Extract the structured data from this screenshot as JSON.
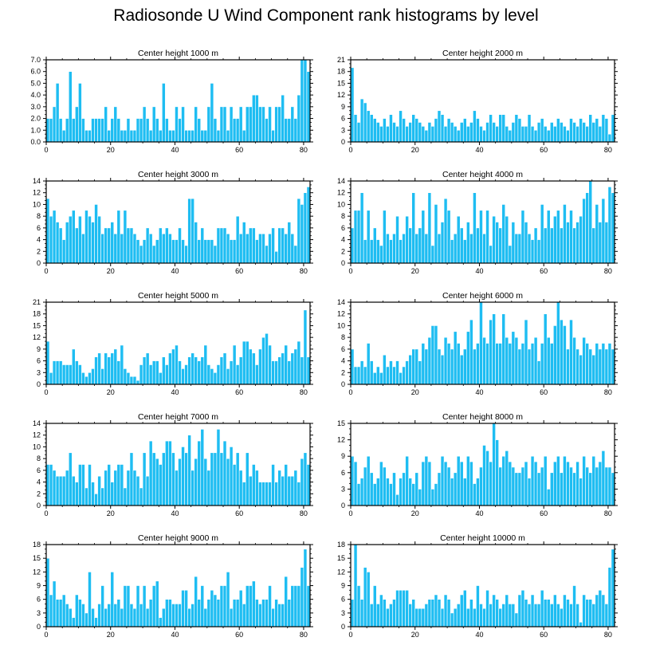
{
  "title": "Radiosonde U Wind Component rank histograms by level",
  "colors": {
    "bar": "#1ebdf2",
    "bar_edge": "#ffffff",
    "axis": "#000000"
  },
  "chart_data": [
    {
      "type": "bar",
      "title": "Center height 1000 m",
      "xlim": [
        0,
        82
      ],
      "ylim": [
        0,
        7
      ],
      "x_ticks": [
        0,
        20,
        40,
        60,
        80
      ],
      "y_ticks": [
        "0.0",
        "1.0",
        "2.0",
        "3.0",
        "4.0",
        "5.0",
        "6.0",
        "7.0"
      ],
      "values": [
        2,
        2,
        3,
        5,
        2,
        1,
        2,
        6,
        2,
        3,
        5,
        2,
        1,
        1,
        2,
        2,
        2,
        2,
        3,
        1,
        2,
        3,
        2,
        1,
        1,
        2,
        1,
        1,
        2,
        2,
        3,
        2,
        1,
        3,
        2,
        1,
        5,
        2,
        1,
        1,
        3,
        2,
        3,
        1,
        1,
        1,
        3,
        2,
        1,
        1,
        3,
        5,
        2,
        1,
        3,
        3,
        1,
        3,
        2,
        2,
        3,
        1,
        3,
        3,
        4,
        4,
        3,
        3,
        2,
        3,
        1,
        3,
        3,
        4,
        2,
        2,
        3,
        2,
        4,
        7,
        7,
        6
      ]
    },
    {
      "type": "bar",
      "title": "Center height 2000 m",
      "xlim": [
        0,
        82
      ],
      "ylim": [
        0,
        21
      ],
      "x_ticks": [
        0,
        20,
        40,
        60,
        80
      ],
      "y_ticks": [
        "0",
        "3",
        "6",
        "9",
        "12",
        "15",
        "18",
        "21"
      ],
      "values": [
        19,
        7,
        5,
        11,
        10,
        8,
        7,
        6,
        5,
        4,
        6,
        4,
        7,
        5,
        4,
        8,
        6,
        4,
        5,
        7,
        6,
        5,
        4,
        3,
        5,
        4,
        6,
        8,
        7,
        4,
        6,
        5,
        4,
        3,
        5,
        6,
        4,
        5,
        8,
        6,
        4,
        3,
        5,
        7,
        5,
        4,
        7,
        7,
        4,
        3,
        5,
        7,
        6,
        4,
        4,
        7,
        4,
        3,
        5,
        6,
        4,
        3,
        5,
        4,
        6,
        5,
        4,
        3,
        6,
        5,
        4,
        6,
        5,
        4,
        7,
        5,
        6,
        4,
        7,
        6,
        2,
        7
      ]
    },
    {
      "type": "bar",
      "title": "Center height 3000 m",
      "xlim": [
        0,
        82
      ],
      "ylim": [
        0,
        14
      ],
      "x_ticks": [
        0,
        20,
        40,
        60,
        80
      ],
      "y_ticks": [
        "0",
        "2",
        "4",
        "6",
        "8",
        "10",
        "12",
        "14"
      ],
      "values": [
        11,
        8,
        9,
        7,
        6,
        4,
        7,
        8,
        9,
        6,
        8,
        5,
        9,
        8,
        7,
        10,
        8,
        5,
        6,
        6,
        7,
        5,
        9,
        5,
        9,
        6,
        6,
        5,
        4,
        3,
        4,
        6,
        5,
        3,
        4,
        6,
        5,
        6,
        5,
        4,
        4,
        6,
        4,
        3,
        11,
        11,
        7,
        4,
        6,
        4,
        4,
        4,
        3,
        6,
        6,
        6,
        5,
        4,
        4,
        8,
        5,
        7,
        5,
        6,
        6,
        4,
        5,
        5,
        3,
        5,
        6,
        2,
        6,
        6,
        5,
        7,
        5,
        3,
        11,
        10,
        12,
        13
      ]
    },
    {
      "type": "bar",
      "title": "Center height 4000 m",
      "xlim": [
        0,
        82
      ],
      "ylim": [
        0,
        14
      ],
      "x_ticks": [
        0,
        20,
        40,
        60,
        80
      ],
      "y_ticks": [
        "0",
        "2",
        "4",
        "6",
        "8",
        "10",
        "12",
        "14"
      ],
      "values": [
        6,
        9,
        9,
        12,
        4,
        9,
        4,
        6,
        4,
        3,
        9,
        5,
        4,
        5,
        8,
        4,
        5,
        8,
        6,
        12,
        5,
        6,
        9,
        5,
        12,
        3,
        10,
        5,
        7,
        11,
        9,
        4,
        5,
        8,
        6,
        4,
        7,
        5,
        12,
        6,
        9,
        5,
        9,
        3,
        8,
        7,
        6,
        10,
        8,
        3,
        7,
        5,
        5,
        9,
        7,
        5,
        4,
        6,
        4,
        10,
        6,
        9,
        6,
        8,
        9,
        6,
        10,
        7,
        9,
        6,
        7,
        8,
        11,
        12,
        14,
        6,
        10,
        7,
        11,
        7,
        13,
        12
      ]
    },
    {
      "type": "bar",
      "title": "Center height 5000 m",
      "xlim": [
        0,
        82
      ],
      "ylim": [
        0,
        21
      ],
      "x_ticks": [
        0,
        20,
        40,
        60,
        80
      ],
      "y_ticks": [
        "0",
        "3",
        "6",
        "9",
        "12",
        "15",
        "18",
        "21"
      ],
      "values": [
        11,
        3,
        6,
        6,
        6,
        5,
        5,
        5,
        9,
        6,
        5,
        3,
        2,
        3,
        4,
        7,
        8,
        4,
        8,
        7,
        8,
        9,
        6,
        10,
        4,
        3,
        2,
        2,
        1,
        5,
        7,
        8,
        5,
        6,
        6,
        3,
        7,
        5,
        8,
        9,
        10,
        6,
        4,
        5,
        7,
        8,
        7,
        6,
        7,
        10,
        5,
        4,
        3,
        5,
        7,
        8,
        4,
        6,
        10,
        5,
        7,
        11,
        11,
        9,
        8,
        5,
        9,
        12,
        13,
        10,
        6,
        6,
        7,
        8,
        10,
        6,
        8,
        9,
        11,
        7,
        19,
        7
      ]
    },
    {
      "type": "bar",
      "title": "Center height 6000 m",
      "xlim": [
        0,
        82
      ],
      "ylim": [
        0,
        14
      ],
      "x_ticks": [
        0,
        20,
        40,
        60,
        80
      ],
      "y_ticks": [
        "0",
        "2",
        "4",
        "6",
        "8",
        "10",
        "12",
        "14"
      ],
      "values": [
        6,
        3,
        3,
        4,
        3,
        7,
        4,
        2,
        3,
        2,
        5,
        3,
        4,
        3,
        4,
        2,
        3,
        4,
        5,
        6,
        6,
        4,
        7,
        6,
        8,
        10,
        10,
        6,
        5,
        8,
        7,
        6,
        9,
        7,
        5,
        6,
        9,
        11,
        6,
        7,
        14,
        8,
        7,
        11,
        12,
        7,
        7,
        12,
        8,
        7,
        9,
        8,
        6,
        7,
        11,
        6,
        7,
        8,
        4,
        7,
        12,
        8,
        7,
        10,
        14,
        11,
        10,
        6,
        11,
        8,
        6,
        5,
        8,
        7,
        6,
        5,
        7,
        6,
        7,
        6,
        7,
        6
      ]
    },
    {
      "type": "bar",
      "title": "Center height 7000 m",
      "xlim": [
        0,
        82
      ],
      "ylim": [
        0,
        14
      ],
      "x_ticks": [
        0,
        20,
        40,
        60,
        80
      ],
      "y_ticks": [
        "0",
        "2",
        "4",
        "6",
        "8",
        "10",
        "12",
        "14"
      ],
      "values": [
        7,
        7,
        6,
        5,
        5,
        5,
        6,
        9,
        5,
        4,
        7,
        7,
        3,
        7,
        4,
        2,
        5,
        3,
        6,
        7,
        4,
        6,
        7,
        7,
        3,
        6,
        9,
        6,
        5,
        3,
        9,
        5,
        11,
        9,
        8,
        7,
        9,
        11,
        11,
        9,
        6,
        8,
        10,
        9,
        12,
        6,
        8,
        11,
        13,
        8,
        6,
        9,
        9,
        13,
        9,
        11,
        8,
        10,
        7,
        9,
        6,
        4,
        9,
        5,
        7,
        6,
        4,
        4,
        4,
        4,
        7,
        4,
        6,
        5,
        7,
        5,
        5,
        6,
        4,
        8,
        9,
        7
      ]
    },
    {
      "type": "bar",
      "title": "Center height 8000 m",
      "xlim": [
        0,
        82
      ],
      "ylim": [
        0,
        15
      ],
      "x_ticks": [
        0,
        20,
        40,
        60,
        80
      ],
      "y_ticks": [
        "0",
        "3",
        "6",
        "9",
        "12",
        "15"
      ],
      "values": [
        9,
        8,
        4,
        5,
        7,
        9,
        6,
        4,
        5,
        8,
        7,
        5,
        4,
        6,
        2,
        5,
        6,
        9,
        5,
        4,
        6,
        3,
        8,
        9,
        8,
        3,
        4,
        6,
        9,
        8,
        7,
        5,
        6,
        9,
        8,
        5,
        9,
        8,
        4,
        5,
        7,
        11,
        10,
        8,
        15,
        12,
        7,
        9,
        10,
        8,
        7,
        6,
        6,
        7,
        8,
        5,
        9,
        8,
        6,
        7,
        9,
        3,
        6,
        8,
        9,
        6,
        9,
        8,
        7,
        6,
        8,
        5,
        9,
        7,
        6,
        9,
        7,
        8,
        10,
        7,
        7,
        6
      ]
    },
    {
      "type": "bar",
      "title": "Center height 9000 m",
      "xlim": [
        0,
        82
      ],
      "ylim": [
        0,
        18
      ],
      "x_ticks": [
        0,
        20,
        40,
        60,
        80
      ],
      "y_ticks": [
        "0",
        "3",
        "6",
        "9",
        "12",
        "15",
        "18"
      ],
      "values": [
        15,
        7,
        10,
        6,
        6,
        7,
        5,
        4,
        2,
        7,
        6,
        5,
        3,
        12,
        4,
        2,
        5,
        9,
        4,
        5,
        12,
        5,
        6,
        4,
        9,
        9,
        5,
        4,
        9,
        5,
        9,
        4,
        6,
        9,
        10,
        2,
        4,
        6,
        6,
        5,
        5,
        5,
        8,
        8,
        4,
        5,
        11,
        6,
        9,
        4,
        6,
        8,
        7,
        6,
        9,
        9,
        12,
        4,
        6,
        6,
        8,
        5,
        9,
        9,
        10,
        6,
        5,
        6,
        6,
        9,
        4,
        6,
        5,
        5,
        11,
        6,
        9,
        9,
        9,
        13,
        17,
        9
      ]
    },
    {
      "type": "bar",
      "title": "Center height 10000 m",
      "xlim": [
        0,
        82
      ],
      "ylim": [
        0,
        18
      ],
      "x_ticks": [
        0,
        20,
        40,
        60,
        80
      ],
      "y_ticks": [
        "0",
        "3",
        "6",
        "9",
        "12",
        "15",
        "18"
      ],
      "values": [
        6,
        18,
        9,
        6,
        13,
        12,
        5,
        9,
        5,
        7,
        6,
        4,
        5,
        6,
        8,
        8,
        8,
        8,
        5,
        6,
        4,
        4,
        4,
        5,
        6,
        6,
        7,
        6,
        4,
        7,
        6,
        3,
        4,
        5,
        7,
        8,
        4,
        6,
        4,
        9,
        5,
        4,
        8,
        5,
        7,
        6,
        4,
        5,
        7,
        5,
        5,
        3,
        7,
        8,
        6,
        5,
        7,
        5,
        5,
        8,
        6,
        6,
        5,
        7,
        5,
        4,
        7,
        6,
        5,
        9,
        5,
        1,
        7,
        6,
        6,
        5,
        7,
        8,
        7,
        5,
        13,
        17
      ]
    }
  ]
}
